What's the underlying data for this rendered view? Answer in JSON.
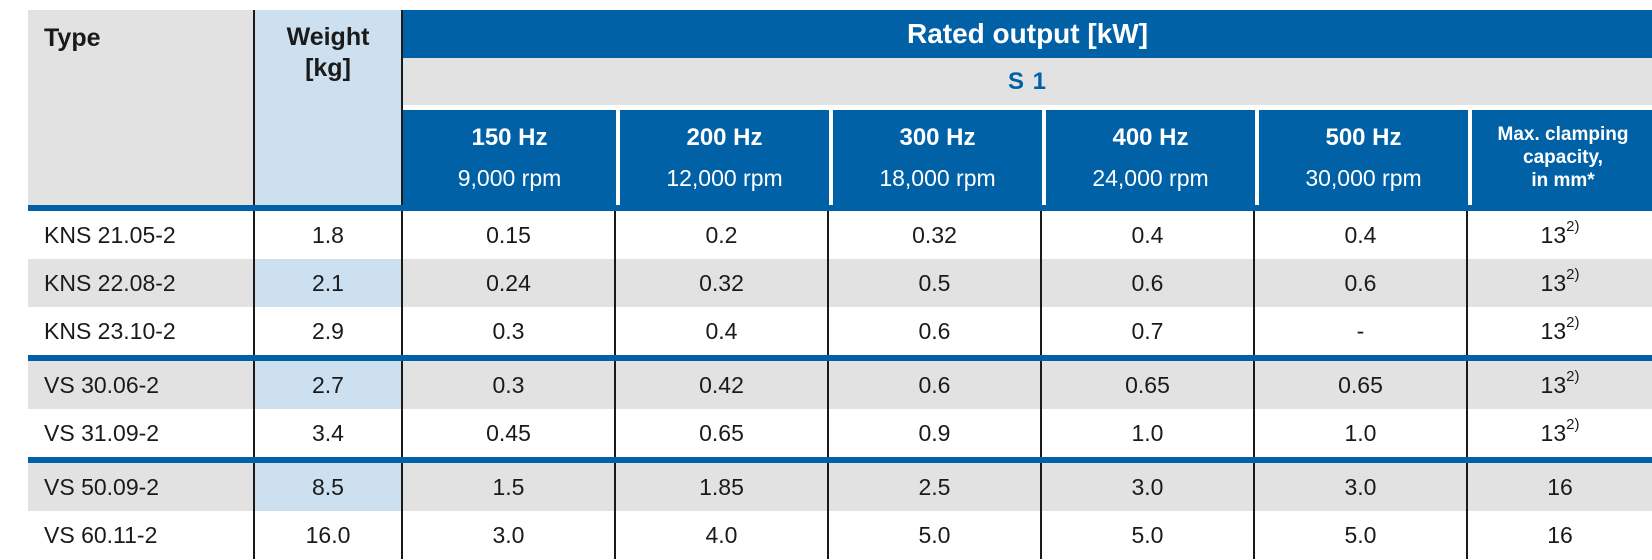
{
  "table": {
    "type_label": "Type",
    "weight_label_line1": "Weight",
    "weight_label_line2": "[kg]",
    "rated_output_label": "Rated output [kW]",
    "duty_label": "S 1",
    "freq_columns": [
      {
        "hz": "150 Hz",
        "rpm": "9,000 rpm"
      },
      {
        "hz": "200 Hz",
        "rpm": "12,000 rpm"
      },
      {
        "hz": "300 Hz",
        "rpm": "18,000 rpm"
      },
      {
        "hz": "400 Hz",
        "rpm": "24,000 rpm"
      },
      {
        "hz": "500 Hz",
        "rpm": "30,000 rpm"
      }
    ],
    "clamp_label_line1": "Max. clamping",
    "clamp_label_line2": "capacity,",
    "clamp_label_line3": "in mm*",
    "rows": [
      {
        "type": "KNS 21.05-2",
        "weight": "1.8",
        "values": [
          "0.15",
          "0.2",
          "0.32",
          "0.4",
          "0.4"
        ],
        "clamp": "13",
        "clamp_sup": "2)"
      },
      {
        "type": "KNS 22.08-2",
        "weight": "2.1",
        "values": [
          "0.24",
          "0.32",
          "0.5",
          "0.6",
          "0.6"
        ],
        "clamp": "13",
        "clamp_sup": "2)"
      },
      {
        "type": "KNS 23.10-2",
        "weight": "2.9",
        "values": [
          "0.3",
          "0.4",
          "0.6",
          "0.7",
          "-"
        ],
        "clamp": "13",
        "clamp_sup": "2)"
      },
      {
        "type": "VS 30.06-2",
        "weight": "2.7",
        "values": [
          "0.3",
          "0.42",
          "0.6",
          "0.65",
          "0.65"
        ],
        "clamp": "13",
        "clamp_sup": "2)"
      },
      {
        "type": "VS 31.09-2",
        "weight": "3.4",
        "values": [
          "0.45",
          "0.65",
          "0.9",
          "1.0",
          "1.0"
        ],
        "clamp": "13",
        "clamp_sup": "2)"
      },
      {
        "type": "VS 50.09-2",
        "weight": "8.5",
        "values": [
          "1.5",
          "1.85",
          "2.5",
          "3.0",
          "3.0"
        ],
        "clamp": "16",
        "clamp_sup": ""
      },
      {
        "type": "VS 60.11-2",
        "weight": "16.0",
        "values": [
          "3.0",
          "4.0",
          "5.0",
          "5.0",
          "5.0"
        ],
        "clamp": "16",
        "clamp_sup": ""
      }
    ]
  },
  "colors": {
    "header_blue": "#0061A7",
    "weight_light_blue": "#CCE0EF",
    "row_shade_gray": "#E2E2E2"
  }
}
